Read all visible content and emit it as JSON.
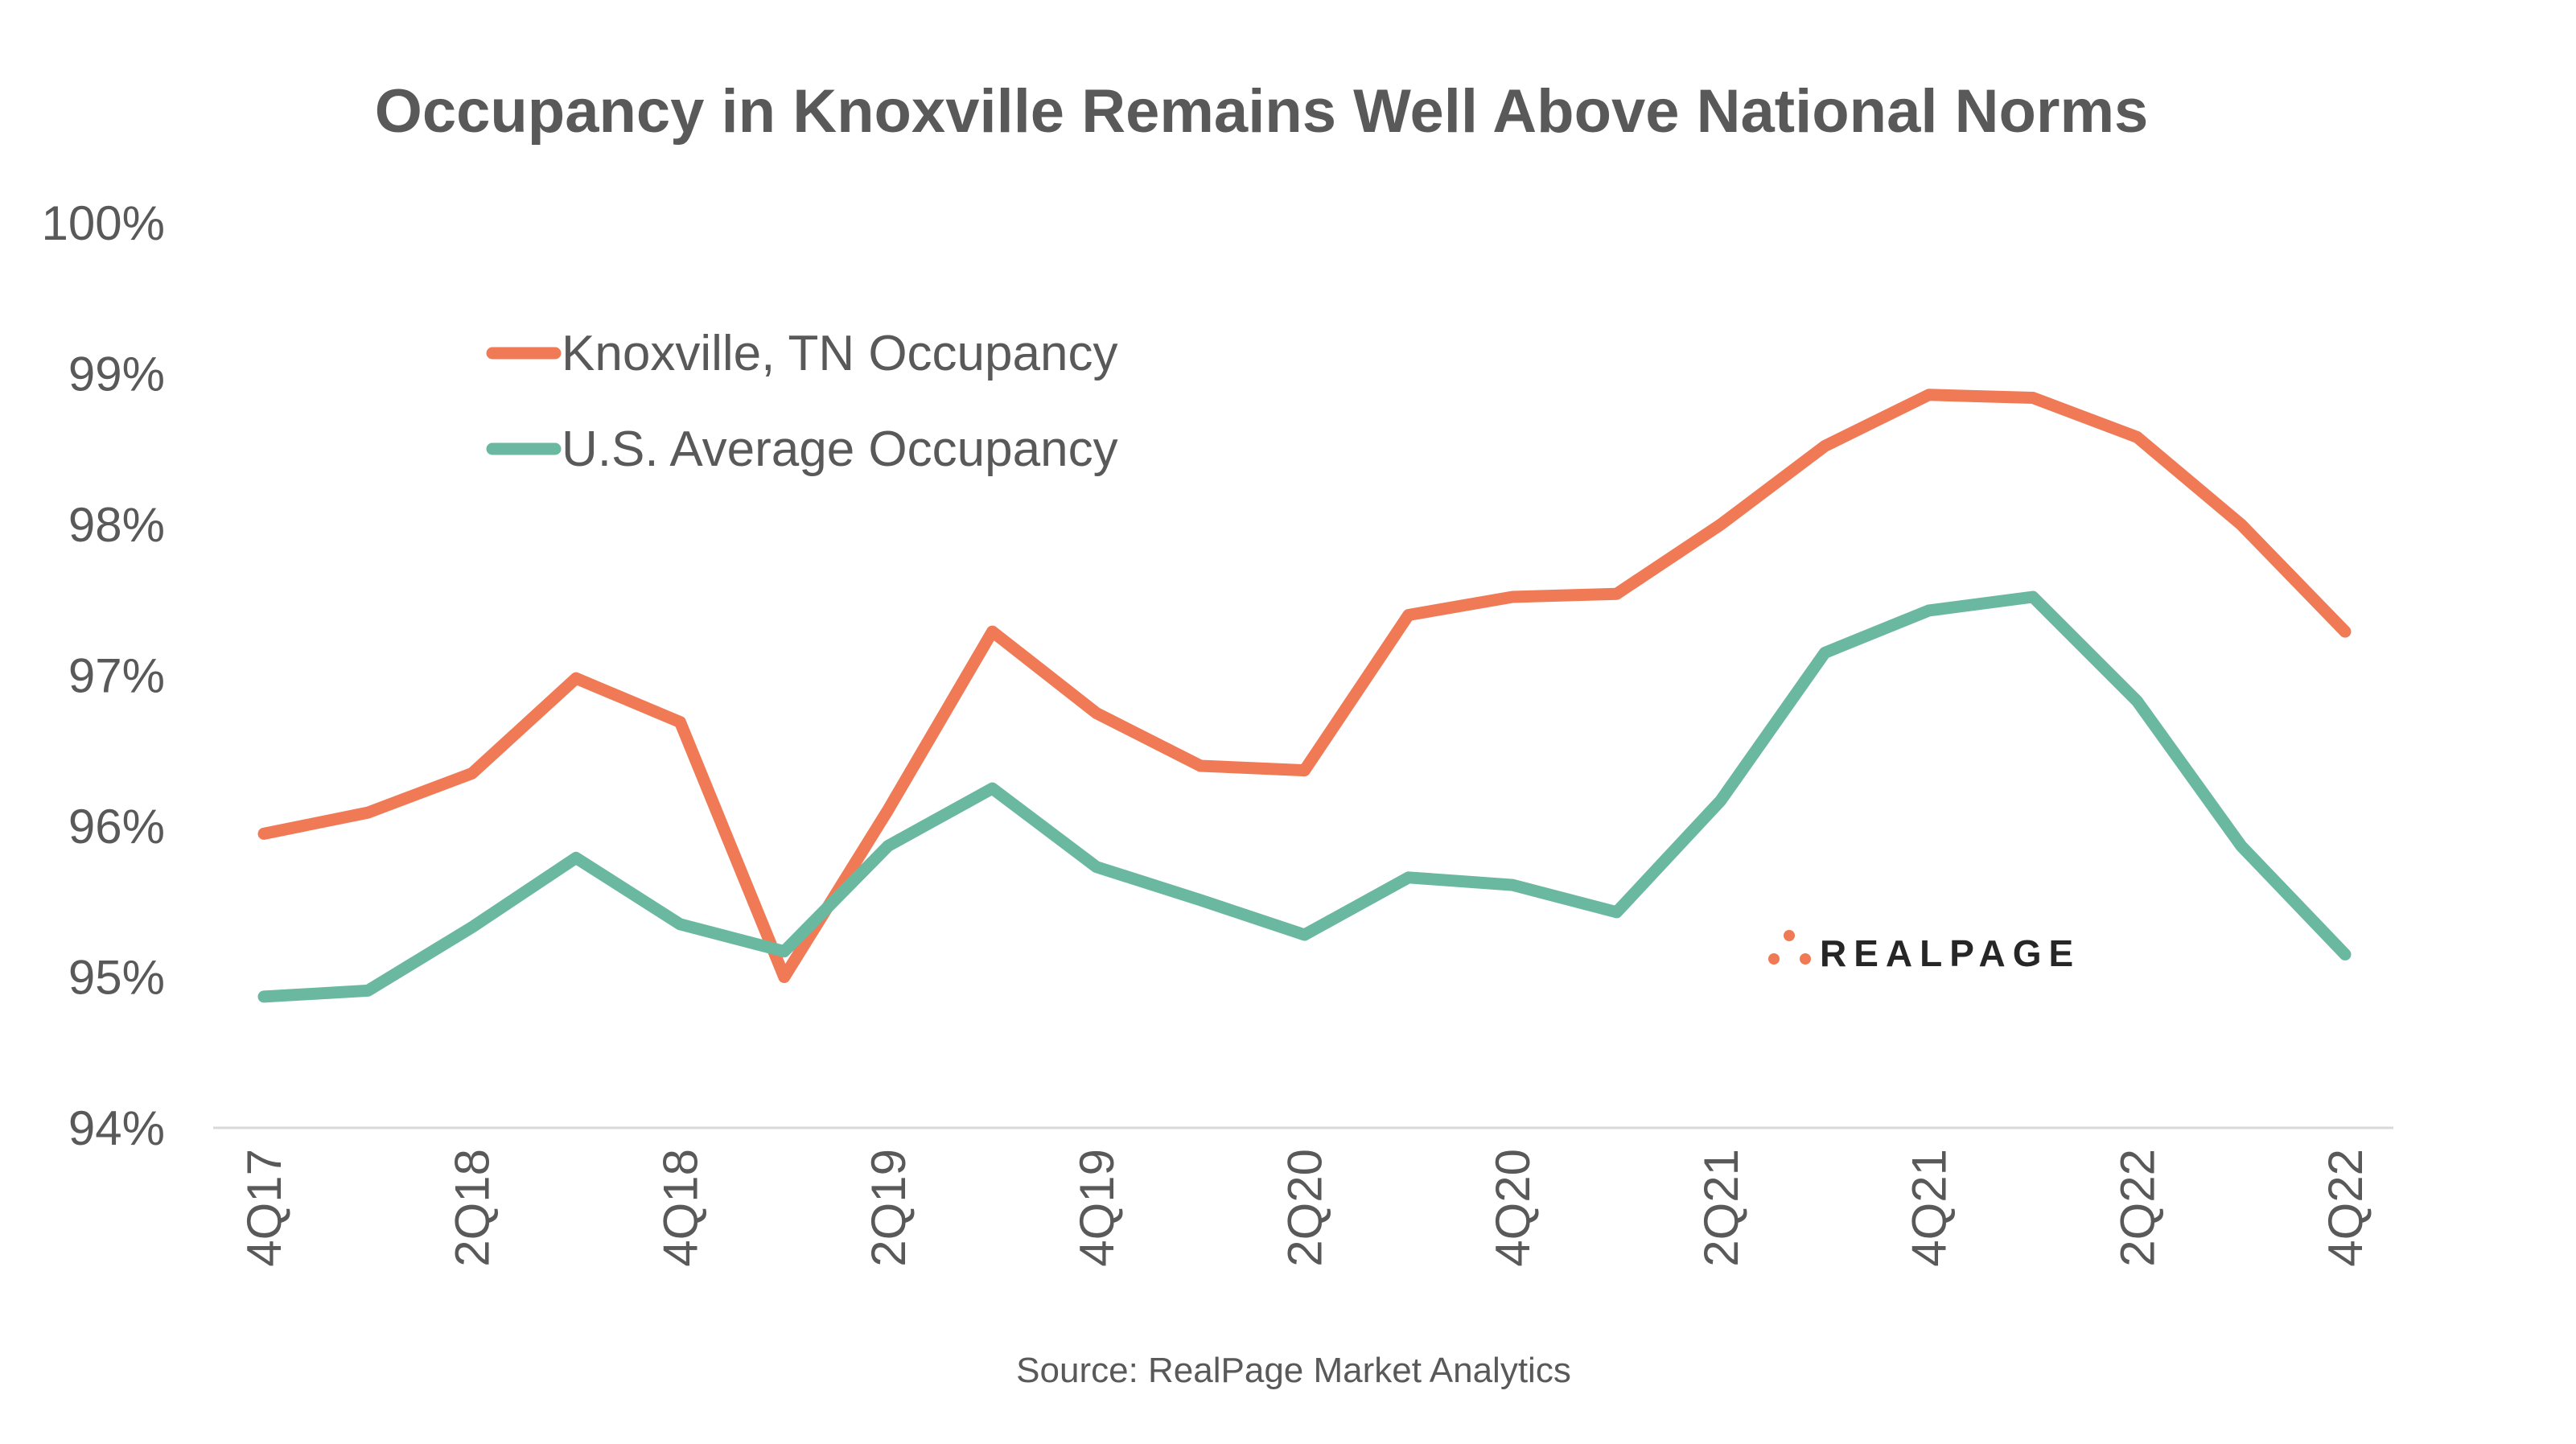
{
  "chart_data": {
    "type": "line",
    "title": "Occupancy in Knoxville Remains Well Above National Norms",
    "xlabel": "",
    "ylabel": "",
    "ylim": [
      94,
      100
    ],
    "yticks": [
      "94%",
      "95%",
      "96%",
      "97%",
      "98%",
      "99%",
      "100%"
    ],
    "grid": false,
    "legend": "top-left",
    "x": [
      "4Q17",
      "1Q18",
      "2Q18",
      "3Q18",
      "4Q18",
      "1Q19",
      "2Q19",
      "3Q19",
      "4Q19",
      "1Q20",
      "2Q20",
      "3Q20",
      "4Q20",
      "1Q21",
      "2Q21",
      "3Q21",
      "4Q21",
      "1Q22",
      "2Q22",
      "3Q22",
      "4Q22"
    ],
    "xtick_labels": [
      "4Q17",
      "",
      "2Q18",
      "",
      "4Q18",
      "",
      "2Q19",
      "",
      "4Q19",
      "",
      "2Q20",
      "",
      "4Q20",
      "",
      "2Q21",
      "",
      "4Q21",
      "",
      "2Q22",
      "",
      "4Q22"
    ],
    "series": [
      {
        "name": "Knoxville, TN Occupancy",
        "color": "#EF7A55",
        "values": [
          95.95,
          96.09,
          96.35,
          96.98,
          96.69,
          95.0,
          96.11,
          97.29,
          96.75,
          96.4,
          96.37,
          97.4,
          97.52,
          97.54,
          98.0,
          98.52,
          98.86,
          98.84,
          98.58,
          98.0,
          97.29
        ]
      },
      {
        "name": "U.S. Average Occupancy",
        "color": "#6AB8A0",
        "values": [
          94.87,
          94.91,
          95.33,
          95.79,
          95.35,
          95.17,
          95.87,
          96.25,
          95.73,
          95.51,
          95.28,
          95.66,
          95.61,
          95.43,
          96.17,
          97.15,
          97.43,
          97.52,
          96.83,
          95.87,
          95.15
        ]
      }
    ],
    "source": "Source: RealPage Market Analytics"
  },
  "logo": {
    "text": "REALPAGE",
    "color": "#EF7A55",
    "text_color": "#262626"
  }
}
